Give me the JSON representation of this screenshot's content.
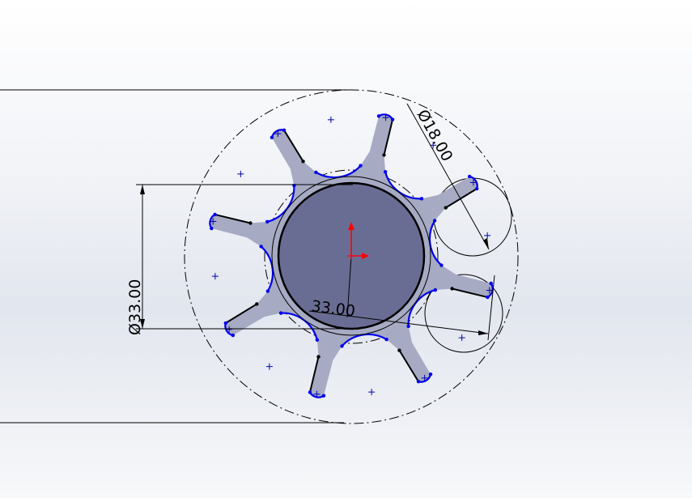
{
  "viewport": {
    "background_top": "#ffffff",
    "background_mid": "#e2e6ee"
  },
  "sketch": {
    "profile_fill": "#a6aac3",
    "hub_fill": "#6a6d93",
    "selected_color": "#0000ee",
    "line_color": "#000000",
    "sprocket_teeth_count": 8,
    "origin_icon": "sketch-origin-icon",
    "center_mark_icon": "center-mark-icon"
  },
  "dimensions": {
    "pitch_diameter": "Ø33.00",
    "hole_diameter": "Ø18.00",
    "radius_value": "33.00"
  }
}
